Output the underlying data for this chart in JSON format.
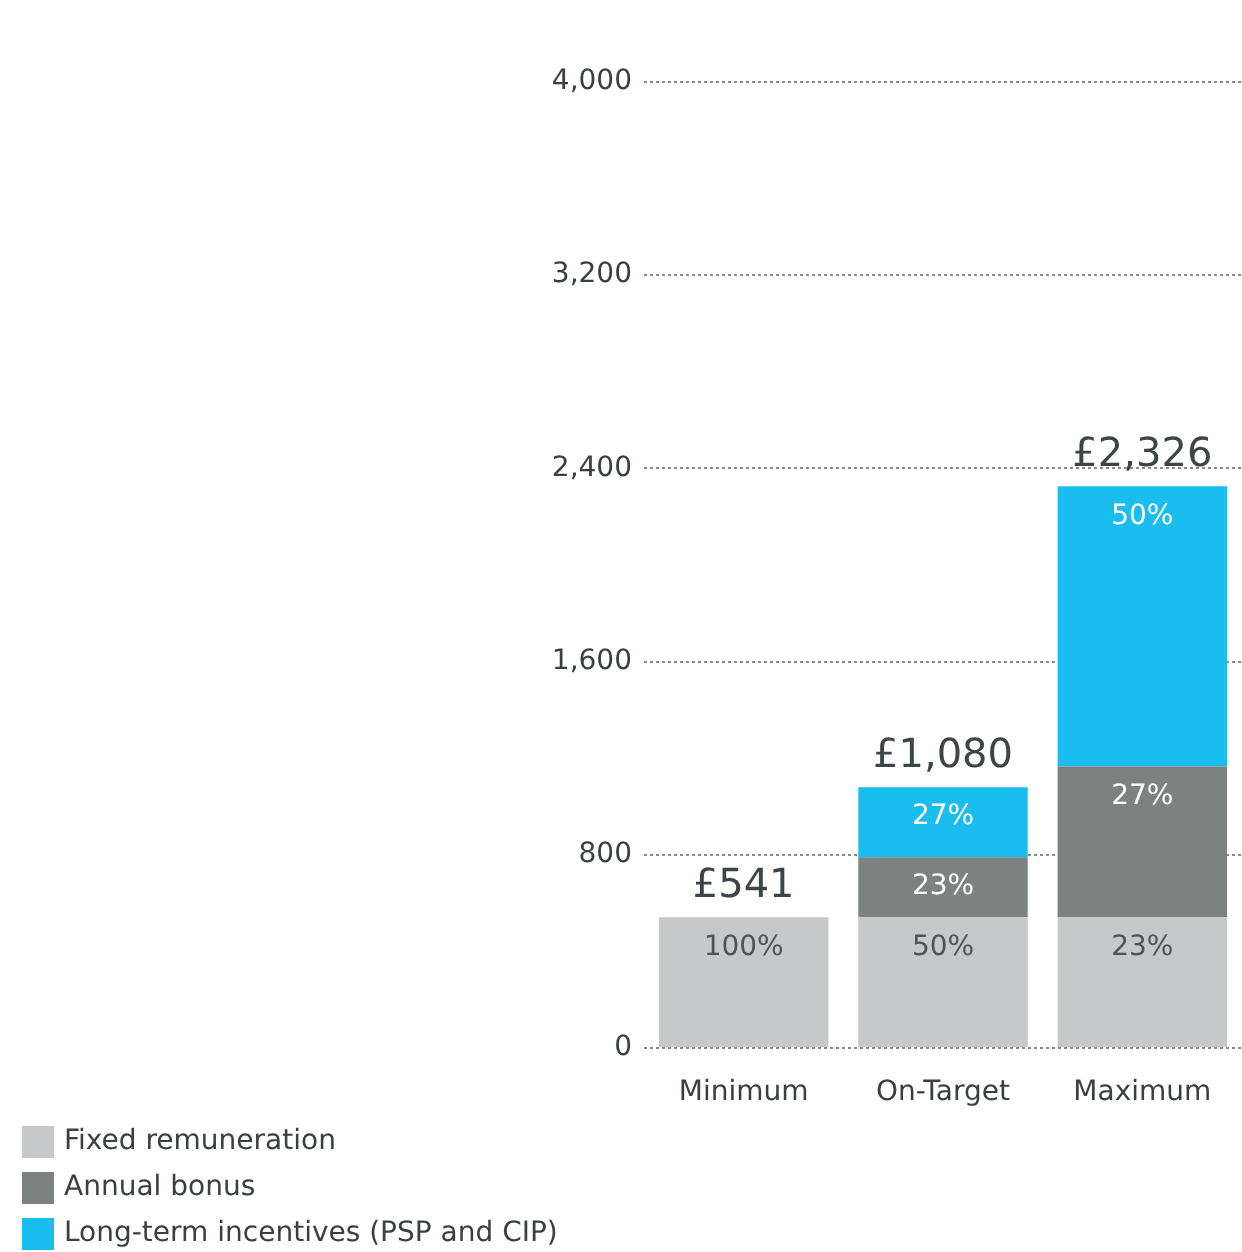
{
  "chart_data": {
    "type": "bar",
    "categories": [
      "Minimum",
      "On-Target",
      "Maximum"
    ],
    "series": [
      {
        "name": "Fixed remuneration",
        "color": "#c7c8ca",
        "values": [
          541,
          541,
          541
        ]
      },
      {
        "name": "Annual bonus",
        "color": "#7d8180",
        "values": [
          null,
          249,
          625
        ]
      },
      {
        "name": "Long-term incentives (PSP and CIP)",
        "color": "#19bdee",
        "values": [
          null,
          290,
          1160
        ]
      }
    ],
    "stacked": true,
    "totals": [
      "£541",
      "£1,080",
      "£2,326"
    ],
    "annotations": [
      {
        "text": "100%",
        "x": "Minimum",
        "y": 541
      },
      {
        "text": "50%",
        "x": "On-Target",
        "y": 541
      },
      {
        "text": "23%",
        "x": "Maximum",
        "y": 541
      },
      {
        "text": "23%",
        "x": "On-Target",
        "y": 790
      },
      {
        "text": "27%",
        "x": "Maximum",
        "y": 1166
      },
      {
        "text": "27%",
        "x": "On-Target",
        "y": 1080
      },
      {
        "text": "50%",
        "x": "Maximum",
        "y": 2326
      }
    ],
    "ylim": [
      0,
      4000
    ],
    "yticks": [
      {
        "value": 0,
        "label": "0"
      },
      {
        "value": 800,
        "label": "800"
      },
      {
        "value": 1600,
        "label": "1,600"
      },
      {
        "value": 2400,
        "label": "2,400"
      },
      {
        "value": 3200,
        "label": "3,200"
      },
      {
        "value": 4000,
        "label": "4,000"
      }
    ],
    "grid": "y",
    "legend": "bottom left"
  }
}
